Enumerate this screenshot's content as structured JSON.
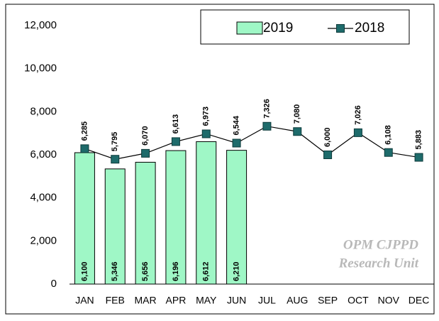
{
  "chart_data": {
    "type": "bar",
    "categories": [
      "JAN",
      "FEB",
      "MAR",
      "APR",
      "MAY",
      "JUN",
      "JUL",
      "AUG",
      "SEP",
      "OCT",
      "NOV",
      "DEC"
    ],
    "series": [
      {
        "name": "2019",
        "type": "bar",
        "color": "#9ff7c6",
        "values": [
          6100,
          5346,
          5656,
          6196,
          6612,
          6210,
          null,
          null,
          null,
          null,
          null,
          null
        ],
        "value_labels": [
          "6,100",
          "5,346",
          "5,656",
          "6,196",
          "6,612",
          "6,210",
          null,
          null,
          null,
          null,
          null,
          null
        ]
      },
      {
        "name": "2018",
        "type": "line",
        "color": "#1e6b6b",
        "values": [
          6285,
          5795,
          6070,
          6613,
          6973,
          6544,
          7326,
          7080,
          6000,
          7026,
          6108,
          5883
        ],
        "value_labels": [
          "6,285",
          "5,795",
          "6,070",
          "6,613",
          "6,973",
          "6,544",
          "7,326",
          "7,080",
          "6,000",
          "7,026",
          "6,108",
          "5,883"
        ]
      }
    ],
    "ylim": [
      0,
      12000
    ],
    "yticks": [
      0,
      {
        "value": 2000,
        "label": "2,000"
      },
      {
        "value": 4000,
        "label": "4,000"
      },
      {
        "value": 6000,
        "label": "6,000"
      },
      {
        "value": 8000,
        "label": "8,000"
      },
      {
        "value": 10000,
        "label": "10,000"
      },
      {
        "value": 12000,
        "label": "12,000"
      }
    ],
    "grid": false,
    "legend": "top-right",
    "annotation": [
      "OPM CJPPD",
      "Research Unit"
    ]
  }
}
